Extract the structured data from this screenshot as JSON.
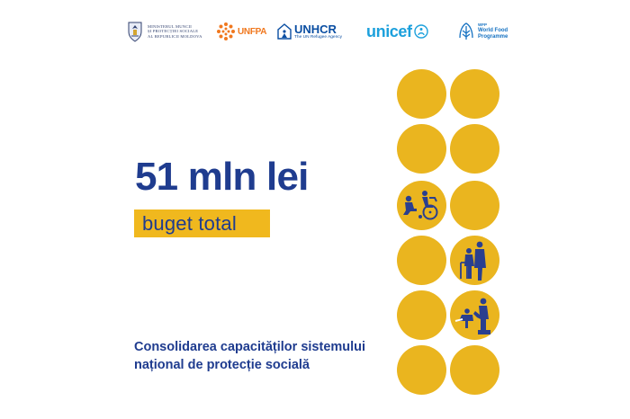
{
  "logos": {
    "ministry": {
      "text": "MINISTERUL MUNCII\nȘI PROTECȚIEI SOCIALE\nAL REPUBLICII MOLDOVA",
      "icon": "moldova-crest-icon"
    },
    "unfpa": {
      "text": "UNFPA",
      "icon": "unfpa-dots-icon"
    },
    "unhcr": {
      "name": "UNHCR",
      "tagline": "The UN Refugee Agency",
      "icon": "unhcr-shelter-icon"
    },
    "unicef": {
      "name": "unicef",
      "icon": "unicef-globe-icon"
    },
    "wfp": {
      "top": "WFP",
      "name": "World Food\nProgramme",
      "icon": "wfp-wheat-icon"
    }
  },
  "headline": "51 mln lei",
  "subhead": "buget total",
  "caption": "Consolidarea capacităților sistemului\nnațional de protecție socială",
  "colors": {
    "accent": "#eab51f",
    "navy": "#1f3c8f",
    "icon_ink": "#2a3f8f"
  },
  "circles": [
    {
      "icon": null
    },
    {
      "icon": null
    },
    {
      "icon": null
    },
    {
      "icon": null
    },
    {
      "icon": "caregiver-wheelchair-icon"
    },
    {
      "icon": null
    },
    {
      "icon": null
    },
    {
      "icon": "caregiver-walker-icon"
    },
    {
      "icon": null
    },
    {
      "icon": "caregiver-child-icon"
    },
    {
      "icon": null
    },
    {
      "icon": null
    }
  ]
}
